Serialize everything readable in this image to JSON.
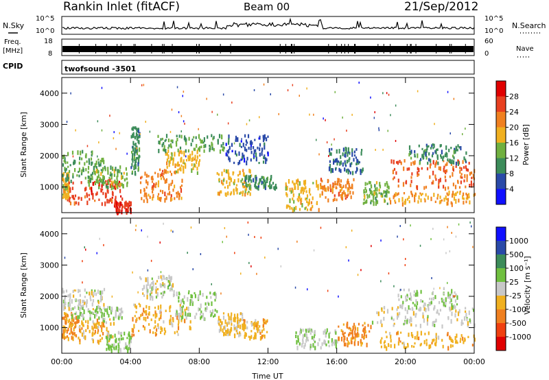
{
  "header": {
    "station": "Rankin Inlet (fitACF)",
    "beam": "Beam 00",
    "date": "21/Sep/2012"
  },
  "top_strip": {
    "nsky_label": "N.Sky",
    "nsky_ticks": [
      "10^5",
      "10^0"
    ],
    "nsearch_label": "N.Search",
    "nsearch_ticks": [
      "10^5",
      "10^0"
    ],
    "freq_label": "Freq.",
    "freq_unit": "[MHz]",
    "freq_ticks": [
      "18",
      "8"
    ],
    "nave_label": "Nave",
    "nave_ticks": [
      "60",
      "0"
    ],
    "cpid_label": "CPID",
    "cpid_value": "twofsound -3501"
  },
  "colors": {
    "power_scale": [
      "#1010ff",
      "#2a4aa8",
      "#3c8c5a",
      "#70b040",
      "#f0b020",
      "#f08020",
      "#e84020",
      "#e00000"
    ],
    "velocity_scale": [
      "#e00000",
      "#f04010",
      "#f08020",
      "#f0b020",
      "#c8c8c8",
      "#70c040",
      "#3c8c5a",
      "#2a4aa8",
      "#1010ff"
    ]
  },
  "chart_data": [
    {
      "type": "heatmap",
      "name": "power",
      "xlabel": "",
      "ylabel": "Slant Range [km]",
      "x_ticks": [
        "00:00",
        "04:00",
        "08:00",
        "12:00",
        "16:00",
        "20:00",
        "00:00"
      ],
      "y_ticks": [
        "4000",
        "3000",
        "2000",
        "1000"
      ],
      "xlim": [
        0,
        24
      ],
      "ylim": [
        180,
        4500
      ],
      "colorbar": {
        "label": "Power [dB]",
        "ticks": [
          "28",
          "24",
          "20",
          "16",
          "12",
          "8",
          "4"
        ],
        "range": [
          0,
          32
        ]
      },
      "regions": [
        {
          "t": [
            0,
            0.4
          ],
          "r": [
            700,
            1500
          ],
          "v": 18
        },
        {
          "t": [
            0.3,
            3.5
          ],
          "r": [
            500,
            1300
          ],
          "v": 26
        },
        {
          "t": [
            0,
            2.5
          ],
          "r": [
            1200,
            2200
          ],
          "v": 12
        },
        {
          "t": [
            1.5,
            3.8
          ],
          "r": [
            1000,
            1700
          ],
          "v": 14
        },
        {
          "t": [
            3.0,
            4.0
          ],
          "r": [
            200,
            600
          ],
          "v": 28
        },
        {
          "t": [
            4.0,
            4.5
          ],
          "r": [
            1400,
            3000
          ],
          "v": 10
        },
        {
          "t": [
            4.5,
            7.0
          ],
          "r": [
            600,
            1600
          ],
          "v": 22
        },
        {
          "t": [
            6.0,
            8.0
          ],
          "r": [
            1500,
            2200
          ],
          "v": 18
        },
        {
          "t": [
            5.5,
            9.5
          ],
          "r": [
            2200,
            2700
          ],
          "v": 12
        },
        {
          "t": [
            9.0,
            11.0
          ],
          "r": [
            800,
            1600
          ],
          "v": 18
        },
        {
          "t": [
            9.5,
            12.0
          ],
          "r": [
            1800,
            2700
          ],
          "v": 6
        },
        {
          "t": [
            10.5,
            12.5
          ],
          "r": [
            1000,
            1400
          ],
          "v": 10
        },
        {
          "t": [
            13.0,
            15.0
          ],
          "r": [
            300,
            1300
          ],
          "v": 18
        },
        {
          "t": [
            15.0,
            17.0
          ],
          "r": [
            600,
            1300
          ],
          "v": 22
        },
        {
          "t": [
            15.5,
            17.5
          ],
          "r": [
            1500,
            2300
          ],
          "v": 8
        },
        {
          "t": [
            17.5,
            19.0
          ],
          "r": [
            500,
            1200
          ],
          "v": 14
        },
        {
          "t": [
            19.0,
            24.0
          ],
          "r": [
            1000,
            1900
          ],
          "v": 24
        },
        {
          "t": [
            19.0,
            24.0
          ],
          "r": [
            500,
            900
          ],
          "v": 20
        },
        {
          "t": [
            20.0,
            23.5
          ],
          "r": [
            1800,
            2400
          ],
          "v": 10
        }
      ]
    },
    {
      "type": "heatmap",
      "name": "velocity",
      "xlabel": "Time UT",
      "ylabel": "Slant Range [km]",
      "x_ticks": [
        "00:00",
        "04:00",
        "08:00",
        "12:00",
        "16:00",
        "20:00",
        "00:00"
      ],
      "y_ticks": [
        "4000",
        "3000",
        "2000",
        "1000"
      ],
      "xlim": [
        0,
        24
      ],
      "ylim": [
        180,
        4500
      ],
      "colorbar": {
        "label": "Velocity [m s⁻¹]",
        "ticks": [
          "1000",
          "500",
          "100",
          "25",
          "-25",
          "-100",
          "-500",
          "-1000"
        ],
        "range": [
          -1250,
          1250
        ]
      },
      "regions": [
        {
          "t": [
            0,
            0.8
          ],
          "r": [
            700,
            1500
          ],
          "v": -400
        },
        {
          "t": [
            0,
            2.5
          ],
          "r": [
            1600,
            2300
          ],
          "v": 0
        },
        {
          "t": [
            0.8,
            3.0
          ],
          "r": [
            600,
            1300
          ],
          "v": -300
        },
        {
          "t": [
            0.5,
            3.5
          ],
          "r": [
            1300,
            1700
          ],
          "v": 150
        },
        {
          "t": [
            2.5,
            4.0
          ],
          "r": [
            300,
            900
          ],
          "v": 200
        },
        {
          "t": [
            4.0,
            7.5
          ],
          "r": [
            800,
            1800
          ],
          "v": -300
        },
        {
          "t": [
            4.5,
            6.5
          ],
          "r": [
            2000,
            2700
          ],
          "v": 0
        },
        {
          "t": [
            6.5,
            9.0
          ],
          "r": [
            1300,
            2200
          ],
          "v": 150
        },
        {
          "t": [
            9.0,
            10.5
          ],
          "r": [
            800,
            1500
          ],
          "v": -200
        },
        {
          "t": [
            10.0,
            12.0
          ],
          "r": [
            700,
            1300
          ],
          "v": -300
        },
        {
          "t": [
            13.5,
            16.0
          ],
          "r": [
            400,
            1000
          ],
          "v": 100
        },
        {
          "t": [
            16.0,
            18.0
          ],
          "r": [
            500,
            1200
          ],
          "v": -500
        },
        {
          "t": [
            18.0,
            24.0
          ],
          "r": [
            1100,
            1700
          ],
          "v": 0
        },
        {
          "t": [
            18.5,
            24.0
          ],
          "r": [
            400,
            900
          ],
          "v": -300
        },
        {
          "t": [
            19.5,
            23.0
          ],
          "r": [
            1700,
            2300
          ],
          "v": 150
        }
      ]
    }
  ]
}
